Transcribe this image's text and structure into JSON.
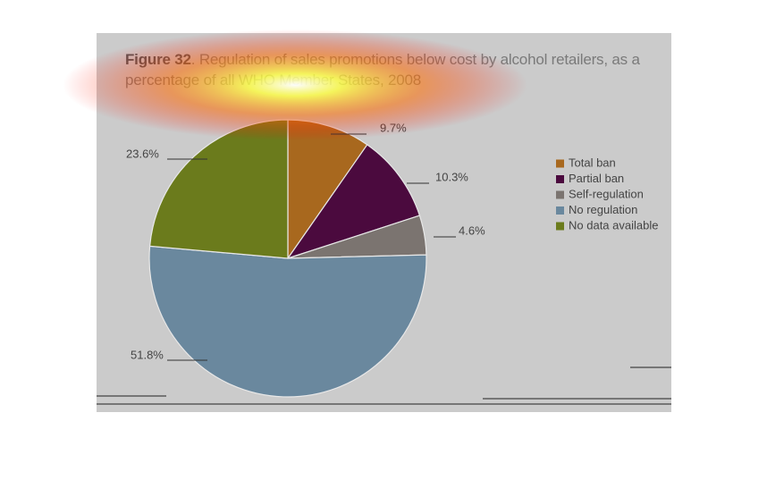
{
  "chart_data": {
    "type": "pie",
    "figure_label": "Figure 32",
    "title": ". Regulation of sales promotions below cost by alcohol retailers, as a percentage of all WHO Member States, 2008",
    "categories": [
      "Total ban",
      "Partial ban",
      "Self-regulation",
      "No regulation",
      "No data available"
    ],
    "values": [
      9.7,
      10.3,
      4.6,
      51.8,
      23.6
    ],
    "value_labels": [
      "9.7%",
      "10.3%",
      "4.6%",
      "51.8%",
      "23.6%"
    ],
    "colors": [
      "#a8681e",
      "#4b0a3e",
      "#7b7470",
      "#6a889e",
      "#6b7b1c"
    ],
    "legend": "right"
  }
}
